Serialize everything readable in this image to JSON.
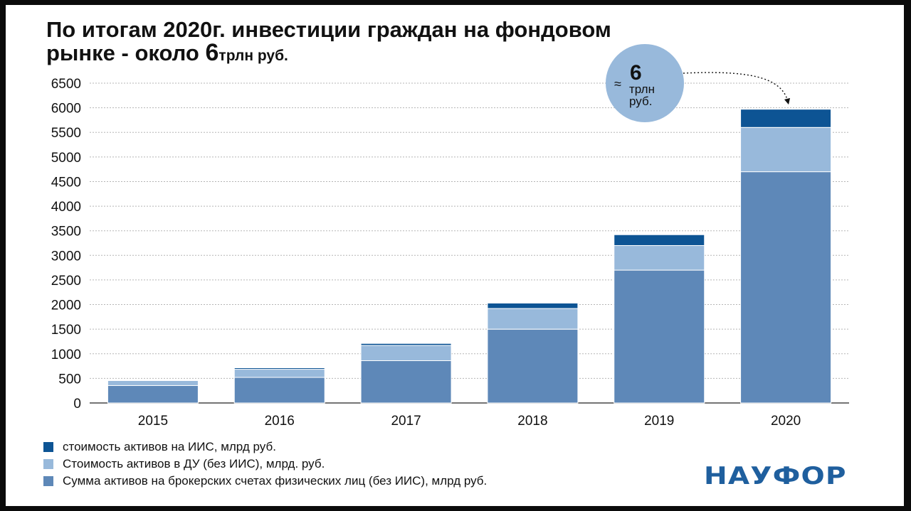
{
  "title": {
    "line1": "По итогам 2020г. инвестиции граждан на фондовом",
    "line2_prefix": "рынке - около ",
    "line2_number": "6",
    "line2_unit": "трлн руб."
  },
  "callout": {
    "approx": "≈",
    "number": "6",
    "unit_line1": "трлн",
    "unit_line2": "руб."
  },
  "logo": "НАУФОР",
  "colors": {
    "iis": "#0d5494",
    "du": "#98b9db",
    "brokerage": "#5e88b8",
    "callout": "#98b9db",
    "grid": "#b5b5b5"
  },
  "chart_data": {
    "type": "bar",
    "stacked": true,
    "categories": [
      "2015",
      "2016",
      "2017",
      "2018",
      "2019",
      "2020"
    ],
    "ylim": [
      0,
      6500
    ],
    "yticks": [
      0,
      500,
      1000,
      1500,
      2000,
      2500,
      3000,
      3500,
      4000,
      4500,
      5000,
      5500,
      6000,
      6500
    ],
    "grid": true,
    "legend_position": "bottom-left",
    "series": [
      {
        "name": "Сумма активов на брокерских счетах физических лиц (без ИИС), млрд руб.",
        "values": [
          355,
          520,
          860,
          1500,
          2700,
          4700
        ]
      },
      {
        "name": "Стоимость активов в ДУ (без ИИС), млрд. руб.",
        "values": [
          100,
          165,
          310,
          420,
          500,
          900
        ]
      },
      {
        "name": "стоимость активов на ИИС, млрд руб.",
        "values": [
          10,
          30,
          40,
          110,
          220,
          370
        ]
      }
    ]
  }
}
